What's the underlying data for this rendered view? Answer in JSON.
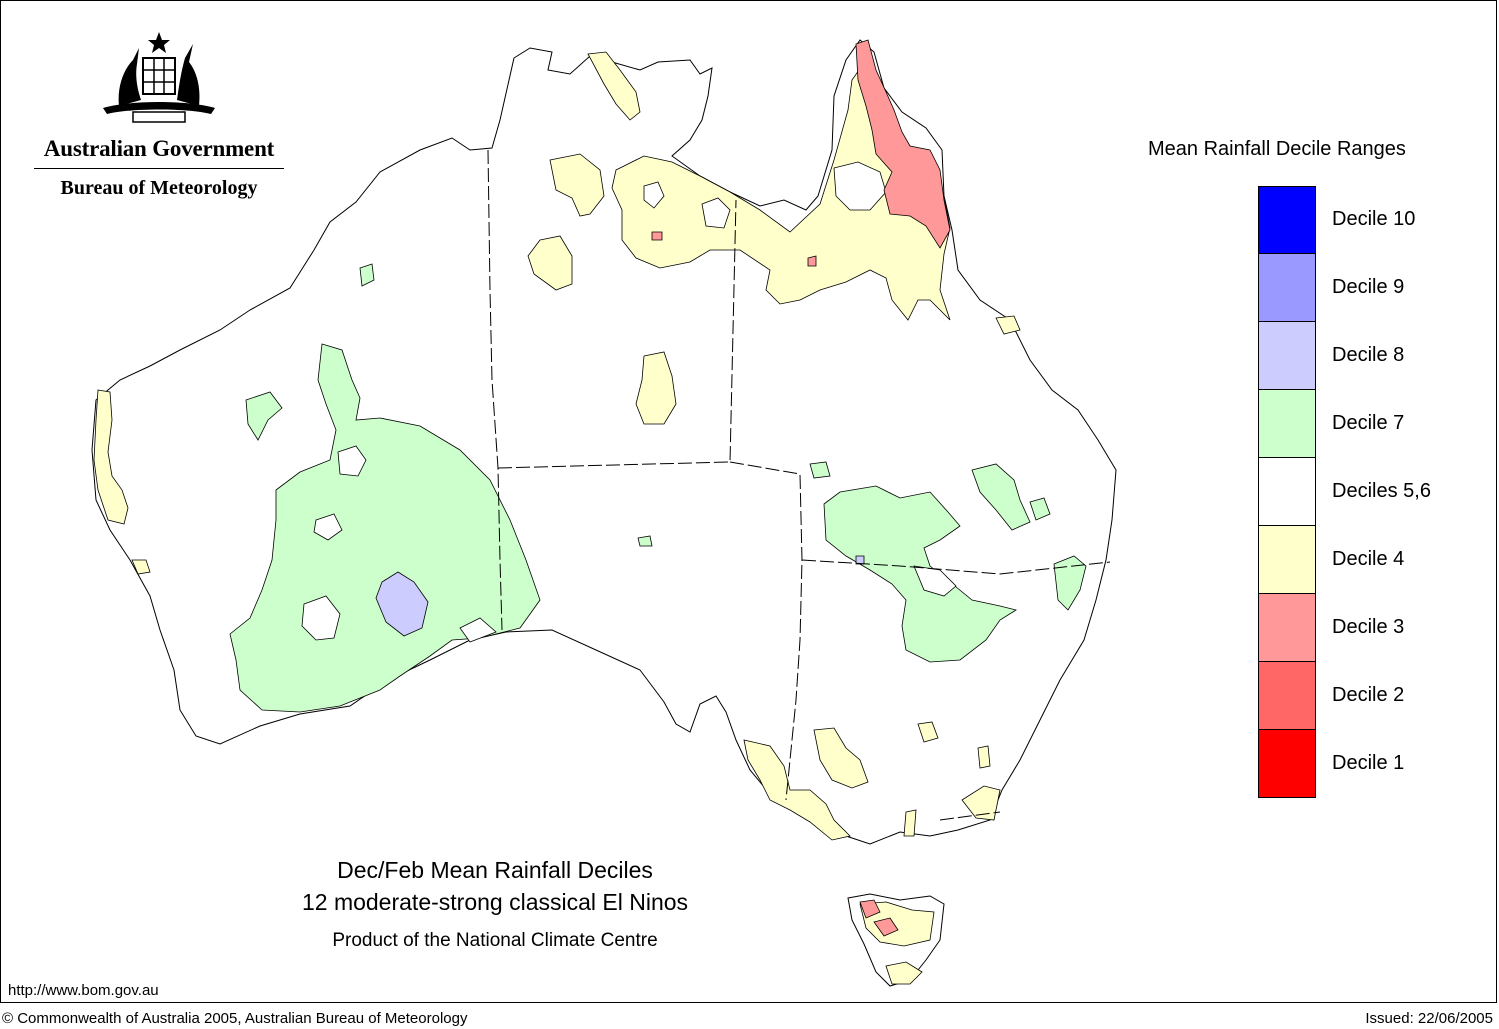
{
  "header": {
    "agency_line1": "Australian Government",
    "agency_line2": "Bureau of Meteorology"
  },
  "legend": {
    "title": "Mean Rainfall Decile Ranges",
    "items": [
      {
        "label": "Decile 10",
        "color": "#0000ff"
      },
      {
        "label": "Decile 9",
        "color": "#9999ff"
      },
      {
        "label": "Decile 8",
        "color": "#ccccff"
      },
      {
        "label": "Decile 7",
        "color": "#ccffcc"
      },
      {
        "label": "Deciles 5,6",
        "color": "#ffffff"
      },
      {
        "label": "Decile 4",
        "color": "#ffffcc"
      },
      {
        "label": "Decile 3",
        "color": "#ff9999"
      },
      {
        "label": "Decile 2",
        "color": "#ff6666"
      },
      {
        "label": "Decile 1",
        "color": "#ff0000"
      }
    ]
  },
  "map": {
    "title_line1": "Dec/Feb Mean Rainfall Deciles",
    "title_line2": "12 moderate-strong classical El Ninos",
    "product_line": "Product of the National Climate Centre"
  },
  "footer": {
    "url": "http://www.bom.gov.au",
    "copyright": "© Commonwealth of Australia 2005, Australian Bureau of Meteorology",
    "issued": "Issued: 22/06/2005"
  }
}
